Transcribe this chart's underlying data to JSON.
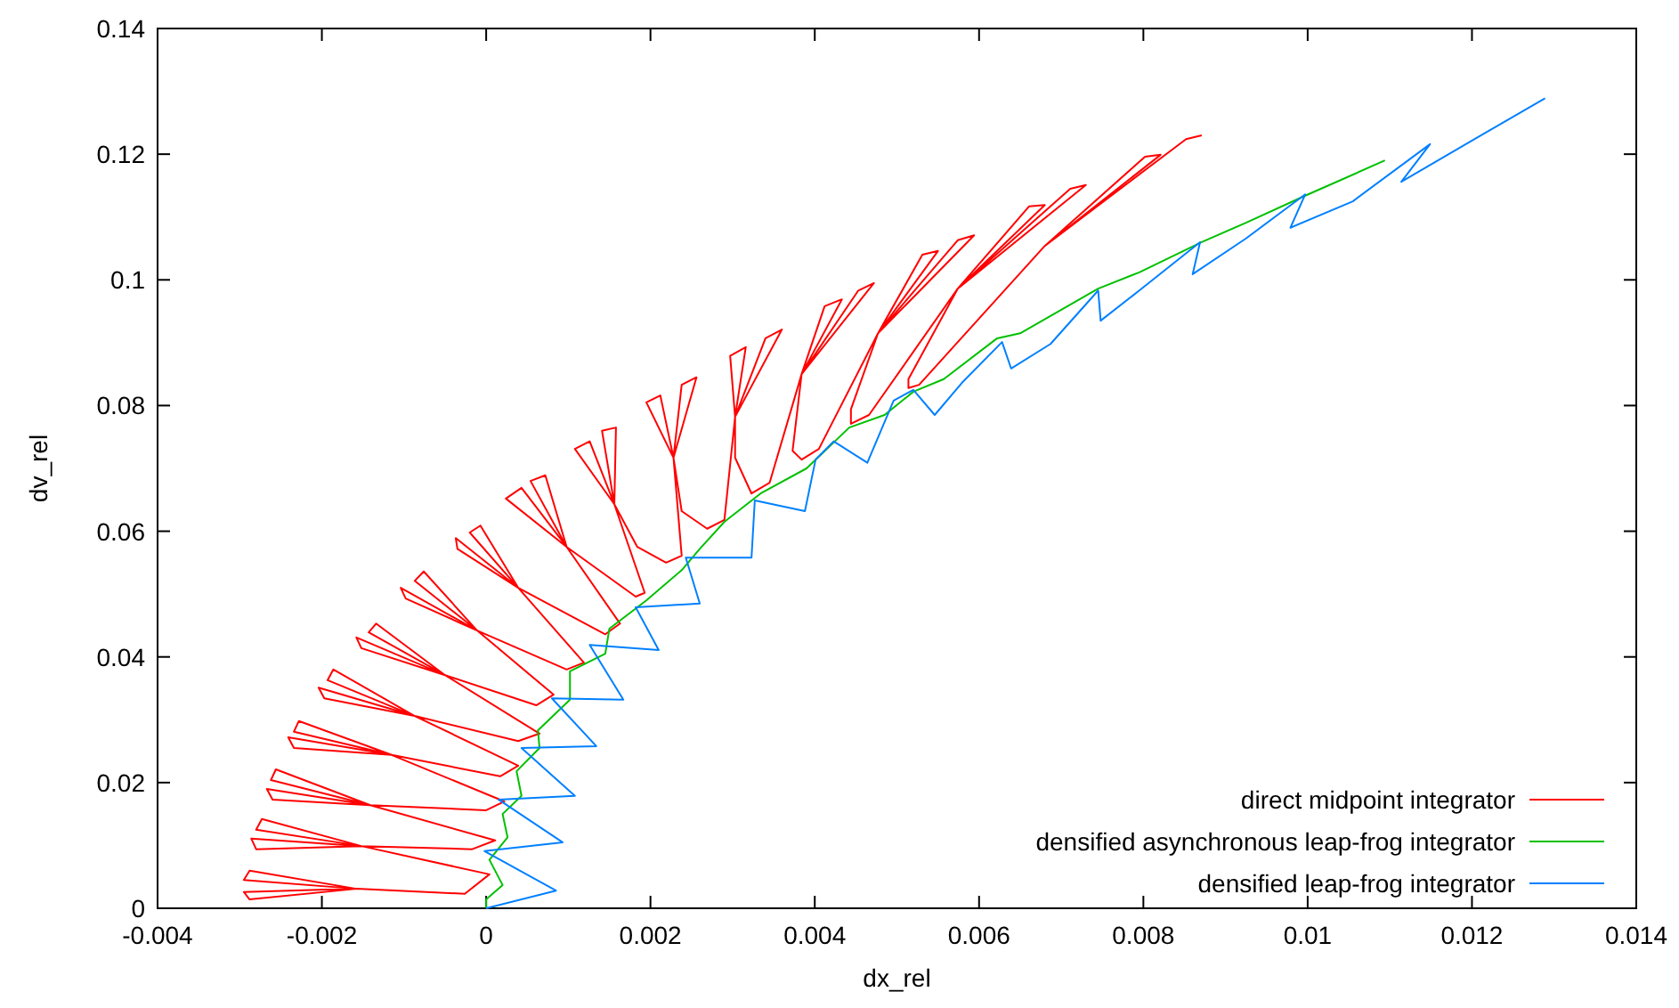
{
  "chart_data": {
    "type": "line",
    "xlabel": "dx_rel",
    "ylabel": "dv_rel",
    "xlim": [
      -0.004,
      0.014
    ],
    "ylim": [
      0,
      0.14
    ],
    "xticks": [
      -0.004,
      -0.002,
      0,
      0.002,
      0.004,
      0.006,
      0.008,
      0.01,
      0.012,
      0.014
    ],
    "yticks": [
      0,
      0.02,
      0.04,
      0.06,
      0.08,
      0.1,
      0.12,
      0.14
    ],
    "legend": "bottom right",
    "line_style": "solid",
    "series": [
      {
        "name": "direct midpoint integrator",
        "color": "#ff0000",
        "x": [
          -0.00158,
          -0.00288,
          -0.00295,
          -0.00158,
          -0.00295,
          -0.00288,
          -0.00158,
          -0.00026,
          4e-05,
          -0.00152,
          -0.00273,
          -0.0028,
          -0.00152,
          -0.00286,
          -0.0028,
          -0.00152,
          -0.00017,
          0.00011,
          -0.00141,
          -0.00256,
          -0.00262,
          -0.00141,
          -0.00267,
          -0.0026,
          -0.00141,
          0,
          0.00022,
          -0.00115,
          -0.00228,
          -0.00234,
          -0.00115,
          -0.00241,
          -0.00234,
          -0.00115,
          0.00017,
          0.00039,
          -0.00087,
          -0.00186,
          -0.00193,
          -0.00087,
          -0.00204,
          -0.00197,
          -0.00087,
          0.00039,
          0.00065,
          -0.0005,
          -0.00134,
          -0.00143,
          -0.0005,
          -0.00158,
          -0.00152,
          -0.0005,
          0.00061,
          0.00082,
          -0.00011,
          -0.00076,
          -0.00087,
          -0.00011,
          -0.00104,
          -0.00098,
          -0.00011,
          0.00098,
          0.00119,
          0.00039,
          -7e-05,
          -0.0002,
          0.00039,
          -0.00037,
          -0.00035,
          0.00039,
          0.00145,
          0.00163,
          0.00098,
          0.00024,
          0.00043,
          0.00098,
          0.00054,
          0.00072,
          0.00098,
          0.00182,
          0.00193,
          0.00156,
          0.00108,
          0.00126,
          0.00156,
          0.00141,
          0.00158,
          0.00156,
          0.00184,
          0.00219,
          0.00238,
          0.00228,
          0.00195,
          0.00212,
          0.00228,
          0.00238,
          0.00256,
          0.00228,
          0.00238,
          0.00269,
          0.0029,
          0.00303,
          0.00297,
          0.00316,
          0.00303,
          0.0034,
          0.0036,
          0.00303,
          0.00303,
          0.00323,
          0.00345,
          0.00384,
          0.00412,
          0.00433,
          0.00384,
          0.00453,
          0.00472,
          0.00384,
          0.00373,
          0.00384,
          0.00405,
          0.00477,
          0.00531,
          0.0055,
          0.00477,
          0.00574,
          0.00594,
          0.00477,
          0.00444,
          0.00444,
          0.00466,
          0.00574,
          0.00661,
          0.0068,
          0.00574,
          0.00711,
          0.0073,
          0.00574,
          0.00514,
          0.00514,
          0.00527,
          0.0068,
          0.00802,
          0.00821,
          0.0068,
          0.00852,
          0.00871
        ],
        "values": [
          0.0031,
          0.006,
          0.0045,
          0.0031,
          0.0026,
          0.0014,
          0.0031,
          0.0023,
          0.0054,
          0.0099,
          0.0142,
          0.0125,
          0.0099,
          0.0111,
          0.0094,
          0.0099,
          0.0094,
          0.0108,
          0.0164,
          0.0221,
          0.0204,
          0.0164,
          0.019,
          0.0173,
          0.0164,
          0.0156,
          0.017,
          0.0244,
          0.0298,
          0.0281,
          0.0244,
          0.0272,
          0.0255,
          0.0244,
          0.021,
          0.0227,
          0.0306,
          0.038,
          0.0363,
          0.0306,
          0.0351,
          0.0334,
          0.0306,
          0.0266,
          0.0278,
          0.0371,
          0.0453,
          0.0439,
          0.0371,
          0.0431,
          0.0414,
          0.0371,
          0.0323,
          0.034,
          0.0442,
          0.0536,
          0.0521,
          0.0442,
          0.051,
          0.0493,
          0.0442,
          0.038,
          0.0391,
          0.051,
          0.0609,
          0.0598,
          0.051,
          0.0589,
          0.0572,
          0.051,
          0.0436,
          0.0453,
          0.0575,
          0.0652,
          0.0669,
          0.0575,
          0.068,
          0.0689,
          0.0575,
          0.0496,
          0.0502,
          0.0643,
          0.0731,
          0.0743,
          0.0643,
          0.076,
          0.0765,
          0.0643,
          0.0575,
          0.055,
          0.0561,
          0.0717,
          0.0805,
          0.0816,
          0.0717,
          0.0833,
          0.0845,
          0.0717,
          0.0632,
          0.0604,
          0.0618,
          0.0782,
          0.0879,
          0.0893,
          0.0782,
          0.0907,
          0.0921,
          0.0782,
          0.0717,
          0.066,
          0.0677,
          0.085,
          0.0958,
          0.0969,
          0.085,
          0.0983,
          0.0995,
          0.085,
          0.0728,
          0.0714,
          0.0731,
          0.0915,
          0.104,
          0.1046,
          0.0915,
          0.1063,
          0.1071,
          0.0915,
          0.0794,
          0.0771,
          0.0785,
          0.0986,
          0.1117,
          0.1119,
          0.0986,
          0.1145,
          0.1151,
          0.0986,
          0.0842,
          0.0828,
          0.0833,
          0.1054,
          0.1196,
          0.1199,
          0.1054,
          0.1224,
          0.123
        ]
      },
      {
        "name": "densified asynchronous leap-frog integrator",
        "color": "#00c000",
        "x": [
          0,
          0,
          0.0002,
          4e-05,
          0.00026,
          0.0002,
          0.00043,
          0.00037,
          0.00065,
          0.00063,
          0.00102,
          0.00102,
          0.00145,
          0.0015,
          0.00195,
          0.00238,
          0.0026,
          0.0029,
          0.00334,
          0.0039,
          0.00442,
          0.00485,
          0.0052,
          0.00557,
          0.00622,
          0.0065,
          0.00745,
          0.00795,
          0.00871,
          0.00925,
          0.00997,
          0.01094
        ],
        "values": [
          0,
          0.0014,
          0.0037,
          0.0077,
          0.0113,
          0.015,
          0.0179,
          0.0218,
          0.0255,
          0.0283,
          0.0332,
          0.0377,
          0.0405,
          0.0445,
          0.049,
          0.0538,
          0.0572,
          0.0615,
          0.066,
          0.07,
          0.0765,
          0.0785,
          0.0822,
          0.0842,
          0.0907,
          0.0915,
          0.0986,
          0.1012,
          0.106,
          0.1091,
          0.1134,
          0.119
        ]
      },
      {
        "name": "densified leap-frog integrator",
        "color": "#0080ff",
        "x": [
          0,
          0.00085,
          -2e-05,
          0.00093,
          0.00015,
          0.00108,
          0.00043,
          0.00134,
          0.0008,
          0.00167,
          0.00126,
          0.0021,
          0.00182,
          0.0026,
          0.00243,
          0.00323,
          0.00327,
          0.00388,
          0.00401,
          0.00423,
          0.00464,
          0.00496,
          0.0052,
          0.00546,
          0.00579,
          0.00628,
          0.00639,
          0.00687,
          0.00745,
          0.00748,
          0.00795,
          0.00869,
          0.0086,
          0.00925,
          0.00997,
          0.00979,
          0.01055,
          0.01149,
          0.01114,
          0.01207,
          0.01289
        ],
        "values": [
          0,
          0.0028,
          0.0091,
          0.0105,
          0.0173,
          0.0179,
          0.0255,
          0.0258,
          0.0334,
          0.0332,
          0.0419,
          0.0411,
          0.0479,
          0.0485,
          0.0558,
          0.0558,
          0.0649,
          0.0632,
          0.0714,
          0.0743,
          0.0709,
          0.0808,
          0.0825,
          0.0785,
          0.0836,
          0.0901,
          0.0859,
          0.0898,
          0.0983,
          0.0935,
          0.0983,
          0.106,
          0.1009,
          0.1066,
          0.1136,
          0.1083,
          0.1125,
          0.1216,
          0.1156,
          0.1227,
          0.1289
        ]
      }
    ]
  }
}
